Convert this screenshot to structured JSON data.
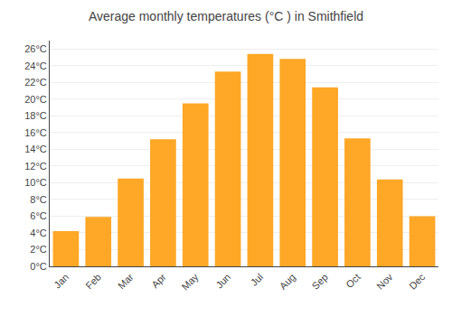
{
  "chart_data": {
    "type": "bar",
    "title": "Average monthly temperatures (°C ) in Smithfield",
    "categories": [
      "Jan",
      "Feb",
      "Mar",
      "Apr",
      "May",
      "Jun",
      "Jul",
      "Aug",
      "Sep",
      "Oct",
      "Nov",
      "Dec"
    ],
    "values": [
      4.2,
      5.9,
      10.5,
      15.2,
      19.5,
      23.3,
      25.4,
      24.8,
      21.4,
      15.3,
      10.4,
      6.0
    ],
    "color": "#FFA726",
    "ylim": [
      0,
      27
    ],
    "yticks": [
      {
        "value": 0,
        "label": "0°C"
      },
      {
        "value": 2,
        "label": "2°C"
      },
      {
        "value": 4,
        "label": "4°C"
      },
      {
        "value": 6,
        "label": "6°C"
      },
      {
        "value": 8,
        "label": "8°C"
      },
      {
        "value": 10,
        "label": "10°C"
      },
      {
        "value": 12,
        "label": "12°C"
      },
      {
        "value": 14,
        "label": "14°C"
      },
      {
        "value": 16,
        "label": "16°C"
      },
      {
        "value": 18,
        "label": "18°C"
      },
      {
        "value": 20,
        "label": "20°C"
      },
      {
        "value": 22,
        "label": "22°C"
      },
      {
        "value": 24,
        "label": "24°C"
      },
      {
        "value": 26,
        "label": "26°C"
      }
    ],
    "grid": true
  }
}
